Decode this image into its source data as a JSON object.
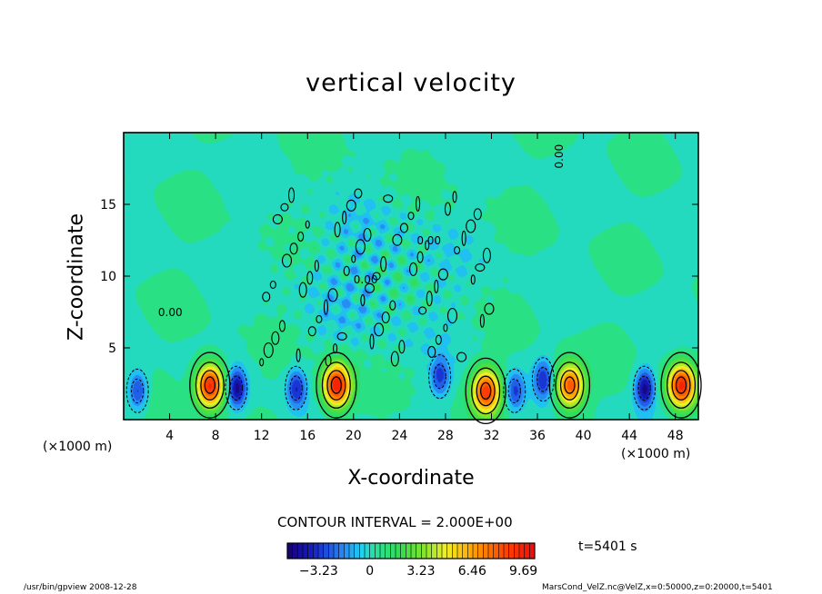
{
  "chart_data": {
    "type": "heatmap",
    "title": "vertical velocity",
    "xlabel": "X-coordinate",
    "ylabel": "Z-coordinate",
    "x_unit_left": "(×1000 m)",
    "x_unit_right": "(×1000 m)",
    "xlim": [
      0,
      50
    ],
    "ylim": [
      0,
      20
    ],
    "x_ticks": [
      "4",
      "8",
      "12",
      "16",
      "20",
      "24",
      "28",
      "32",
      "36",
      "40",
      "44",
      "48"
    ],
    "x_tick_values": [
      4,
      8,
      12,
      16,
      20,
      24,
      28,
      32,
      36,
      40,
      44,
      48
    ],
    "y_ticks": [
      "5",
      "10",
      "15"
    ],
    "y_tick_values": [
      5,
      10,
      15
    ],
    "contour_interval": "CONTOUR INTERVAL = 2.000E+00",
    "contour_labels": [
      "0.00",
      "0.00",
      "0.00",
      "0.00"
    ],
    "colorbar": {
      "tick_labels": [
        "−3.23",
        "0",
        "3.23",
        "6.46",
        "9.69"
      ],
      "tick_values": [
        -3.23,
        0,
        3.23,
        6.46,
        9.69
      ],
      "range": [
        -5.2,
        10.4
      ]
    },
    "updrafts": [
      {
        "x": 7.5,
        "z": 2.4,
        "peak": 9.5
      },
      {
        "x": 18.5,
        "z": 2.4,
        "peak": 9.7
      },
      {
        "x": 31.5,
        "z": 2.0,
        "peak": 8.5
      },
      {
        "x": 38.8,
        "z": 2.4,
        "peak": 8.0
      },
      {
        "x": 48.5,
        "z": 2.4,
        "peak": 9.0
      }
    ],
    "downdrafts": [
      {
        "x": 9.8,
        "z": 2.2,
        "peak": -5.0
      },
      {
        "x": 1.2,
        "z": 2.0,
        "peak": -3.5
      },
      {
        "x": 15.0,
        "z": 2.2,
        "peak": -3.8
      },
      {
        "x": 27.5,
        "z": 3.0,
        "peak": -3.2
      },
      {
        "x": 34.0,
        "z": 2.0,
        "peak": -3.3
      },
      {
        "x": 36.5,
        "z": 2.8,
        "peak": -3.6
      },
      {
        "x": 45.3,
        "z": 2.2,
        "peak": -5.0
      }
    ],
    "time": "t=5401 s"
  },
  "footer": {
    "left": "/usr/bin/gpview   2008-12-28",
    "right": "MarsCond_VelZ.nc@VelZ,x=0:50000,z=0:20000,t=5401"
  },
  "colors": {
    "background_field": "#1fe07a",
    "frame": "#000000"
  }
}
